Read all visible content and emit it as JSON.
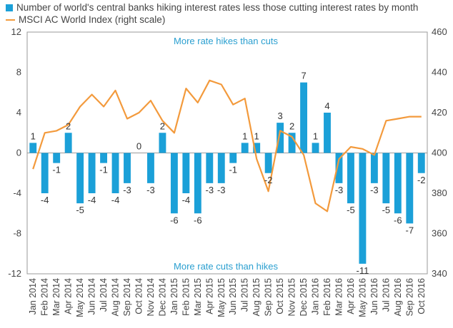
{
  "chart_data": {
    "type": "bar+line",
    "categories": [
      "Jan 2014",
      "Feb 2014",
      "Mar 2014",
      "Apr 2014",
      "May 2014",
      "Jun 2014",
      "Jul 2014",
      "Aug 2014",
      "Sep 2014",
      "Oct 2014",
      "Nov 2014",
      "Dec 2014",
      "Jan 2015",
      "Feb 2015",
      "Mar 2015",
      "Apr 2015",
      "May 2015",
      "Jun 2015",
      "Jul 2015",
      "Aug 2015",
      "Sep 2015",
      "Oct 2015",
      "Nov 2015",
      "Dec 2015",
      "Jan 2016",
      "Feb 2016",
      "Mar 2016",
      "Apr 2016",
      "May 2016",
      "Jun 2016",
      "Jul 2016",
      "Aug 2016",
      "Sep 2016",
      "Oct 2016"
    ],
    "series": [
      {
        "name": "Number of world's central banks hiking interest rates less those cutting interest rates by month",
        "axis": "left",
        "type": "bar",
        "color": "#1ba0d8",
        "values": [
          1,
          -4,
          -1,
          2,
          -5,
          -4,
          -1,
          -4,
          -3,
          0,
          -3,
          2,
          -6,
          -4,
          -6,
          -3,
          -3,
          -1,
          1,
          1,
          -2,
          3,
          2,
          7,
          1,
          4,
          -3,
          -5,
          -11,
          -3,
          -5,
          -6,
          -7,
          -2
        ]
      },
      {
        "name": "MSCI AC World Index (right scale)",
        "axis": "right",
        "type": "line",
        "color": "#f39a3c",
        "values": [
          392,
          410,
          411,
          414,
          423,
          429,
          423,
          431,
          417,
          420,
          426,
          416,
          410,
          432,
          425,
          436,
          434,
          424,
          427,
          397,
          381,
          411,
          408,
          399,
          375,
          371,
          397,
          403,
          402,
          399,
          416,
          417,
          418,
          418
        ]
      }
    ],
    "left_axis": {
      "ticks": [
        "12",
        "8",
        "4",
        "0",
        "-4",
        "-8",
        "-12"
      ],
      "ylim": [
        -12,
        12
      ]
    },
    "right_axis": {
      "ticks": [
        "460",
        "440",
        "420",
        "400",
        "380",
        "360",
        "340"
      ],
      "ylim": [
        340,
        460
      ]
    },
    "data_labels": [
      "1",
      "-4",
      "-1",
      "2",
      "-5",
      "-4",
      "-1",
      "-4",
      "-3",
      "0",
      "-3",
      "2",
      "-6",
      "-4",
      "-6",
      "-3",
      "-3",
      "-1",
      "1",
      "1",
      "-2",
      "3",
      "2",
      "7",
      "1",
      "4",
      "-3",
      "-5",
      "-11",
      "-3",
      "-5",
      "-6",
      "-7",
      "-2"
    ],
    "annotations": {
      "top": "More rate hikes than cuts",
      "bottom": "More rate cuts than hikes"
    },
    "grid": false,
    "legend_position": "top-left"
  }
}
